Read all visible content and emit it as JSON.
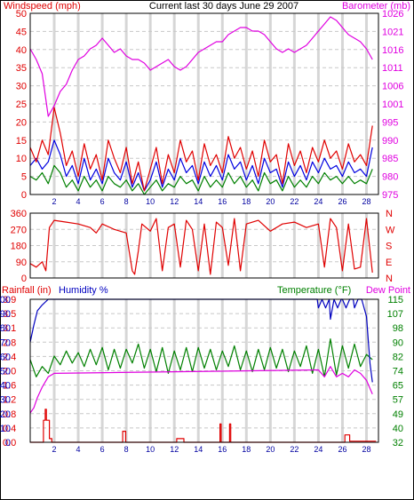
{
  "title": "Current last 30 days June 29 2007",
  "colors": {
    "windspeed": "#e00000",
    "gust": "#0000e0",
    "windavg": "#008000",
    "barometer": "#e000e0",
    "direction": "#e00000",
    "rainfall": "#e00000",
    "humidity": "#0000c0",
    "temperature": "#008000",
    "dewpoint": "#e000e0",
    "grid": "#c8c8c8",
    "frame": "#000000",
    "daytick": "#0000a0"
  },
  "chart_data": [
    {
      "type": "line",
      "name": "wind-barometer",
      "left_axis_label": "Windspeed (mph)",
      "right_axis_label": "Barometer (mb)",
      "left_ticks": [
        "0",
        "5",
        "10",
        "15",
        "20",
        "25",
        "30",
        "35",
        "40",
        "45",
        "50"
      ],
      "right_ticks": [
        "975",
        "980",
        "985",
        "990",
        "995",
        "1001",
        "1006",
        "1011",
        "1016",
        "1021",
        "1026"
      ],
      "x_ticks": [
        "2",
        "4",
        "6",
        "8",
        "10",
        "12",
        "14",
        "16",
        "18",
        "20",
        "22",
        "24",
        "26",
        "28"
      ],
      "ylim_left": [
        0,
        50
      ],
      "ylim_right": [
        975,
        1026
      ],
      "xlim": [
        0,
        29
      ],
      "barometer": {
        "x": [
          0,
          0.5,
          1,
          1.5,
          2,
          2.5,
          3,
          3.5,
          4,
          4.5,
          5,
          5.5,
          6,
          6.5,
          7,
          7.5,
          8,
          8.5,
          9,
          9.5,
          10,
          10.5,
          11,
          11.5,
          12,
          12.5,
          13,
          13.5,
          14,
          14.5,
          15,
          15.5,
          16,
          16.5,
          17,
          17.5,
          18,
          18.5,
          19,
          19.5,
          20,
          20.5,
          21,
          21.5,
          22,
          22.5,
          23,
          23.5,
          24,
          24.5,
          25,
          25.5,
          26,
          26.5,
          27,
          27.5,
          28,
          28.5
        ],
        "values": [
          1016,
          1013,
          1009,
          997,
          1000,
          1004,
          1006,
          1010,
          1013,
          1014,
          1016,
          1017,
          1019,
          1017,
          1015,
          1016,
          1014,
          1013,
          1013,
          1012,
          1010,
          1011,
          1012,
          1013,
          1011,
          1010,
          1011,
          1013,
          1015,
          1016,
          1017,
          1018,
          1018,
          1020,
          1021,
          1022,
          1022,
          1021,
          1021,
          1020,
          1018,
          1016,
          1015,
          1016,
          1015,
          1016,
          1017,
          1019,
          1021,
          1023,
          1025,
          1024,
          1022,
          1020,
          1019,
          1018,
          1016,
          1013
        ]
      },
      "windspeed": {
        "x": [
          0,
          0.5,
          1,
          1.5,
          2,
          2.5,
          3,
          3.5,
          4,
          4.5,
          5,
          5.5,
          6,
          6.5,
          7,
          7.5,
          8,
          8.5,
          9,
          9.5,
          10,
          10.5,
          11,
          11.5,
          12,
          12.5,
          13,
          13.5,
          14,
          14.5,
          15,
          15.5,
          16,
          16.5,
          17,
          17.5,
          18,
          18.5,
          19,
          19.5,
          20,
          20.5,
          21,
          21.5,
          22,
          22.5,
          23,
          23.5,
          24,
          24.5,
          25,
          25.5,
          26,
          26.5,
          27,
          27.5,
          28,
          28.5
        ],
        "values": [
          13,
          9,
          15,
          11,
          24,
          17,
          8,
          12,
          5,
          14,
          7,
          11,
          4,
          15,
          10,
          6,
          13,
          3,
          9,
          1,
          7,
          13,
          3,
          11,
          6,
          15,
          9,
          12,
          4,
          14,
          8,
          11,
          6,
          16,
          10,
          13,
          7,
          12,
          5,
          15,
          9,
          11,
          3,
          14,
          8,
          12,
          6,
          13,
          9,
          15,
          10,
          12,
          7,
          14,
          9,
          11,
          8,
          19
        ]
      },
      "gust": {
        "x": [
          0,
          0.5,
          1,
          1.5,
          2,
          2.5,
          3,
          3.5,
          4,
          4.5,
          5,
          5.5,
          6,
          6.5,
          7,
          7.5,
          8,
          8.5,
          9,
          9.5,
          10,
          10.5,
          11,
          11.5,
          12,
          12.5,
          13,
          13.5,
          14,
          14.5,
          15,
          15.5,
          16,
          16.5,
          17,
          17.5,
          18,
          18.5,
          19,
          19.5,
          20,
          20.5,
          21,
          21.5,
          22,
          22.5,
          23,
          23.5,
          24,
          24.5,
          25,
          25.5,
          26,
          26.5,
          27,
          27.5,
          28,
          28.5
        ],
        "values": [
          8,
          10,
          7,
          9,
          15,
          11,
          5,
          8,
          3,
          10,
          4,
          7,
          3,
          10,
          6,
          4,
          9,
          2,
          6,
          1,
          4,
          9,
          2,
          7,
          4,
          10,
          6,
          8,
          3,
          9,
          5,
          8,
          4,
          11,
          7,
          9,
          4,
          8,
          3,
          10,
          6,
          7,
          2,
          9,
          5,
          8,
          4,
          9,
          6,
          10,
          7,
          8,
          5,
          9,
          6,
          7,
          5,
          13
        ]
      },
      "windavg": {
        "x": [
          0,
          0.5,
          1,
          1.5,
          2,
          2.5,
          3,
          3.5,
          4,
          4.5,
          5,
          5.5,
          6,
          6.5,
          7,
          7.5,
          8,
          8.5,
          9,
          9.5,
          10,
          10.5,
          11,
          11.5,
          12,
          12.5,
          13,
          13.5,
          14,
          14.5,
          15,
          15.5,
          16,
          16.5,
          17,
          17.5,
          18,
          18.5,
          19,
          19.5,
          20,
          20.5,
          21,
          21.5,
          22,
          22.5,
          23,
          23.5,
          24,
          24.5,
          25,
          25.5,
          26,
          26.5,
          27,
          27.5,
          28,
          28.5
        ],
        "values": [
          5,
          4,
          6,
          3,
          8,
          6,
          2,
          4,
          1,
          5,
          2,
          4,
          1,
          5,
          3,
          2,
          4,
          1,
          3,
          0,
          2,
          4,
          1,
          3,
          2,
          5,
          3,
          4,
          1,
          5,
          2,
          4,
          2,
          6,
          3,
          5,
          2,
          4,
          1,
          6,
          3,
          4,
          1,
          5,
          2,
          4,
          2,
          5,
          3,
          6,
          4,
          5,
          3,
          5,
          3,
          4,
          3,
          7
        ]
      }
    },
    {
      "type": "line",
      "name": "wind-direction",
      "left_ticks": [
        "0",
        "90",
        "180",
        "270",
        "360"
      ],
      "right_ticks": [
        "N",
        "E",
        "S",
        "W",
        "N"
      ],
      "ylim": [
        0,
        360
      ],
      "xlim": [
        0,
        29
      ],
      "direction": {
        "x": [
          0,
          0.5,
          1,
          1.3,
          1.6,
          2,
          3,
          4,
          5,
          5.5,
          6,
          7,
          8,
          8.5,
          8.7,
          9,
          9.3,
          10,
          10.5,
          11,
          11.5,
          12,
          12.5,
          13,
          13.5,
          14,
          14.5,
          15,
          15.5,
          16,
          16.5,
          17,
          17.5,
          18,
          19,
          20,
          21,
          22,
          23,
          24,
          24.5,
          25,
          25.5,
          26,
          26.5,
          27,
          27.5,
          28,
          28.5
        ],
        "values": [
          80,
          60,
          90,
          40,
          280,
          320,
          310,
          300,
          280,
          250,
          300,
          270,
          250,
          40,
          20,
          150,
          300,
          260,
          330,
          40,
          280,
          300,
          60,
          320,
          270,
          40,
          300,
          20,
          310,
          280,
          70,
          330,
          40,
          300,
          320,
          260,
          300,
          310,
          280,
          300,
          60,
          330,
          280,
          40,
          300,
          50,
          60,
          330,
          30
        ]
      }
    },
    {
      "type": "line",
      "name": "rain-humidity-temperature",
      "left_axis_label": "Rainfall (in)",
      "humidity_label": "Humidity %",
      "right_axis_label": "Temperature (°F)",
      "dewpoint_label": "Dew Point",
      "rain_ticks": [
        "0.0",
        "0.4",
        "0.8",
        "1.2",
        "1.6",
        "2.0",
        "2.4",
        "2.8",
        "3.1",
        "3.5",
        "3.9"
      ],
      "humidity_ticks": [
        "0",
        "10",
        "20",
        "30",
        "40",
        "50",
        "60",
        "70",
        "80",
        "90",
        "100"
      ],
      "temp_ticks": [
        "32",
        "40",
        "49",
        "57",
        "65",
        "74",
        "82",
        "90",
        "98",
        "107",
        "115"
      ],
      "ylim_humidity": [
        0,
        100
      ],
      "ylim_temp": [
        32,
        115
      ],
      "xlim": [
        0,
        29
      ],
      "humidity": {
        "x": [
          0,
          0.3,
          0.6,
          1,
          1.5,
          2,
          10,
          20,
          23.9,
          24,
          24.3,
          24.6,
          24.9,
          25,
          25.3,
          25.6,
          25.9,
          26,
          26.3,
          26.6,
          26.9,
          27,
          27.3,
          27.6,
          28,
          28.3,
          28.5
        ],
        "values": [
          70,
          82,
          92,
          96,
          100,
          100,
          100,
          100,
          100,
          94,
          100,
          94,
          100,
          86,
          100,
          94,
          100,
          100,
          94,
          100,
          100,
          94,
          100,
          100,
          88,
          55,
          42
        ]
      },
      "temperature": {
        "x": [
          0,
          0.5,
          1,
          1.5,
          2,
          2.5,
          3,
          3.5,
          4,
          4.5,
          5,
          5.5,
          6,
          6.5,
          7,
          7.5,
          8,
          8.5,
          9,
          9.5,
          10,
          10.5,
          11,
          11.5,
          12,
          12.5,
          13,
          13.5,
          14,
          14.5,
          15,
          15.5,
          16,
          16.5,
          17,
          17.5,
          18,
          18.5,
          19,
          19.5,
          20,
          20.5,
          21,
          21.5,
          22,
          22.5,
          23,
          23.5,
          24,
          24.5,
          25,
          25.5,
          26,
          26.5,
          27,
          27.5,
          28,
          28.5
        ],
        "values": [
          80,
          70,
          76,
          72,
          82,
          77,
          85,
          78,
          84,
          76,
          86,
          77,
          87,
          74,
          86,
          75,
          86,
          78,
          89,
          75,
          86,
          73,
          87,
          72,
          85,
          74,
          87,
          73,
          87,
          75,
          86,
          74,
          85,
          76,
          88,
          74,
          85,
          73,
          86,
          74,
          87,
          75,
          86,
          73,
          85,
          76,
          88,
          72,
          86,
          70,
          92,
          71,
          88,
          75,
          89,
          76,
          83,
          80
        ]
      },
      "dewpoint": {
        "x": [
          0,
          0.3,
          0.6,
          1,
          1.5,
          2,
          24,
          24.5,
          25,
          25.5,
          26,
          26.5,
          27,
          27.5,
          28,
          28.5
        ],
        "values": [
          49,
          52,
          58,
          64,
          70,
          72,
          74,
          70,
          76,
          70,
          72,
          70,
          74,
          72,
          68,
          60
        ]
      },
      "rainfall": {
        "x": [
          0,
          1.1,
          1.1,
          1.25,
          1.25,
          1.35,
          1.35,
          1.6,
          1.6,
          1.8,
          1.8,
          7.7,
          7.7,
          7.95,
          7.95,
          12.2,
          12.2,
          12.8,
          12.8,
          15.8,
          15.8,
          15.9,
          15.9,
          16.6,
          16.6,
          16.7,
          16.7,
          26.2,
          26.2,
          26.6,
          26.6,
          28.8
        ],
        "values": [
          0,
          0,
          0.6,
          0.6,
          0.9,
          0.9,
          0.6,
          0.6,
          0.1,
          0.1,
          0,
          0,
          0.3,
          0.3,
          0,
          0,
          0.1,
          0.1,
          0,
          0,
          0.5,
          0.5,
          0,
          0,
          0.5,
          0.5,
          0,
          0,
          0.2,
          0.2,
          0.03,
          0.03
        ]
      }
    }
  ]
}
